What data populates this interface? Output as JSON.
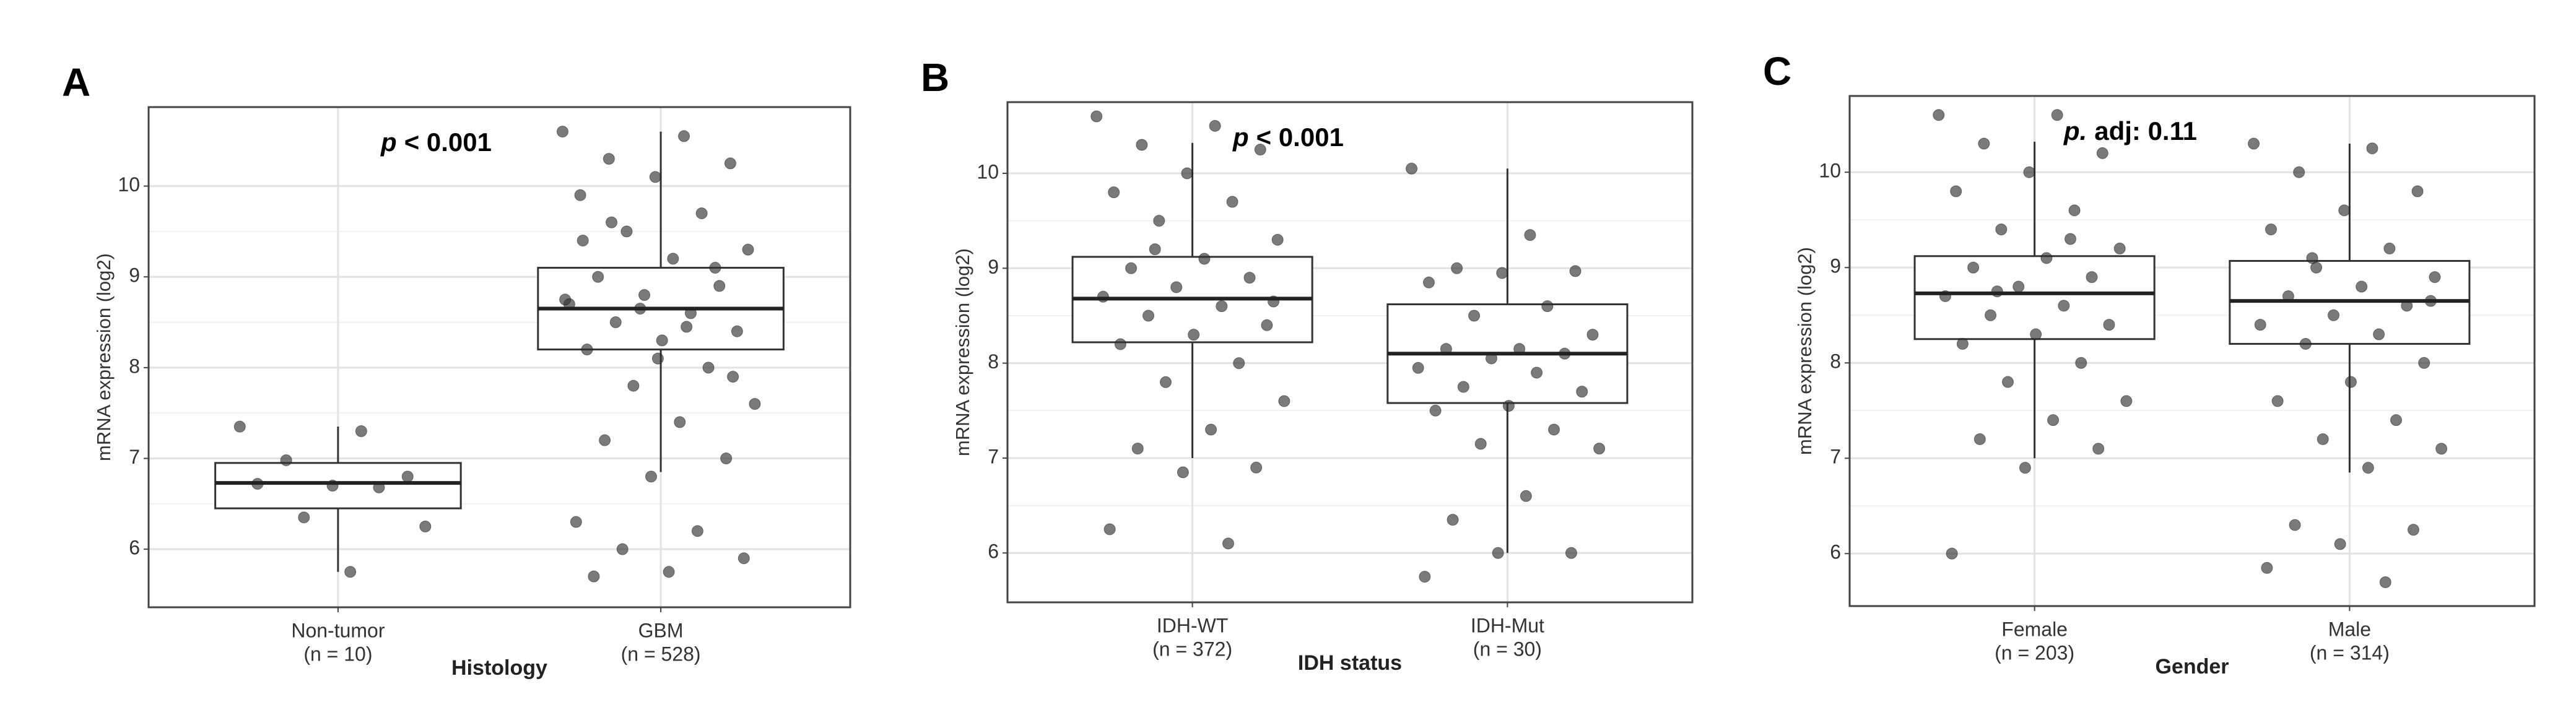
{
  "chart_data": [
    {
      "type": "box",
      "panel_label": "A",
      "annotation": {
        "italic": "p",
        "rest": "< 0.001"
      },
      "y_label": "mRNA expression (log2)",
      "x_label": "Histology",
      "ylim": [
        5.36,
        10.87
      ],
      "yticks": [
        6,
        7,
        8,
        9,
        10
      ],
      "grid": true,
      "point_color": "#333333",
      "groups": [
        {
          "name": "Non-tumor",
          "n_label": "(n = 10)",
          "whisker_low": 5.75,
          "q1": 6.45,
          "median": 6.73,
          "q3": 6.95,
          "whisker_high": 7.35,
          "points": [
            7.35,
            7.3,
            6.98,
            6.8,
            6.7,
            6.72,
            6.68,
            6.35,
            6.25,
            5.75
          ]
        },
        {
          "name": "GBM",
          "n_label": "(n = 528)",
          "whisker_low": 6.85,
          "q1": 8.2,
          "median": 8.65,
          "q3": 9.1,
          "whisker_high": 10.6,
          "points": [
            10.6,
            10.55,
            10.3,
            10.25,
            10.1,
            9.9,
            9.7,
            9.5,
            9.3,
            9.2,
            9.0,
            8.9,
            8.8,
            8.7,
            8.6,
            8.5,
            8.4,
            8.3,
            8.2,
            8.0,
            7.8,
            7.6,
            7.4,
            7.2,
            7.0,
            6.8,
            6.3,
            6.2,
            6.0,
            5.9,
            5.75,
            5.7,
            9.1,
            8.65,
            8.75,
            8.45,
            9.6,
            7.9,
            8.1,
            9.4
          ]
        }
      ]
    },
    {
      "type": "box",
      "panel_label": "B",
      "annotation": {
        "italic": "p",
        "rest": "< 0.001"
      },
      "y_label": "mRNA expression (log2)",
      "x_label": "IDH status",
      "ylim": [
        5.48,
        10.75
      ],
      "yticks": [
        6,
        7,
        8,
        9,
        10
      ],
      "grid": true,
      "point_color": "#333333",
      "groups": [
        {
          "name": "IDH-WT",
          "n_label": "(n = 372)",
          "whisker_low": 7.0,
          "q1": 8.22,
          "median": 8.68,
          "q3": 9.12,
          "whisker_high": 10.32,
          "points": [
            10.6,
            10.5,
            10.3,
            10.25,
            10.0,
            9.8,
            9.7,
            9.5,
            9.3,
            9.1,
            9.0,
            8.9,
            8.8,
            8.7,
            8.6,
            8.5,
            8.4,
            8.3,
            8.2,
            8.0,
            7.8,
            7.6,
            7.3,
            7.1,
            6.9,
            6.85,
            6.25,
            6.1,
            9.2,
            8.65
          ]
        },
        {
          "name": "IDH-Mut",
          "n_label": "(n = 30)",
          "whisker_low": 6.0,
          "q1": 7.58,
          "median": 8.1,
          "q3": 8.62,
          "whisker_high": 10.05,
          "points": [
            10.05,
            9.35,
            9.0,
            8.97,
            8.95,
            8.85,
            8.6,
            8.5,
            8.3,
            8.15,
            8.15,
            8.1,
            8.05,
            7.95,
            7.9,
            7.75,
            7.7,
            7.55,
            7.5,
            7.3,
            7.15,
            7.1,
            6.6,
            6.35,
            6.0,
            6.0,
            5.75
          ]
        }
      ]
    },
    {
      "type": "box",
      "panel_label": "C",
      "annotation": {
        "italic": "p.",
        "rest": "adj: 0.11"
      },
      "y_label": "mRNA expression (log2)",
      "x_label": "Gender",
      "ylim": [
        5.45,
        10.8
      ],
      "yticks": [
        6,
        7,
        8,
        9,
        10
      ],
      "grid": true,
      "point_color": "#333333",
      "groups": [
        {
          "name": "Female",
          "n_label": "(n = 203)",
          "whisker_low": 7.0,
          "q1": 8.25,
          "median": 8.73,
          "q3": 9.12,
          "whisker_high": 10.32,
          "points": [
            10.6,
            10.6,
            10.3,
            10.2,
            10.0,
            9.8,
            9.6,
            9.4,
            9.2,
            9.1,
            9.0,
            8.9,
            8.8,
            8.7,
            8.6,
            8.5,
            8.4,
            8.3,
            8.2,
            8.0,
            7.8,
            7.6,
            7.4,
            7.2,
            7.1,
            6.9,
            6.0,
            9.3,
            8.75
          ]
        },
        {
          "name": "Male",
          "n_label": "(n = 314)",
          "whisker_low": 6.85,
          "q1": 8.2,
          "median": 8.65,
          "q3": 9.07,
          "whisker_high": 10.3,
          "points": [
            10.3,
            10.25,
            10.0,
            9.8,
            9.6,
            9.4,
            9.2,
            9.0,
            8.9,
            8.8,
            8.7,
            8.6,
            8.5,
            8.4,
            8.3,
            8.2,
            8.0,
            7.8,
            7.6,
            7.4,
            7.2,
            7.1,
            6.9,
            6.3,
            6.25,
            6.1,
            5.85,
            5.7,
            9.1,
            8.65
          ]
        }
      ]
    }
  ]
}
